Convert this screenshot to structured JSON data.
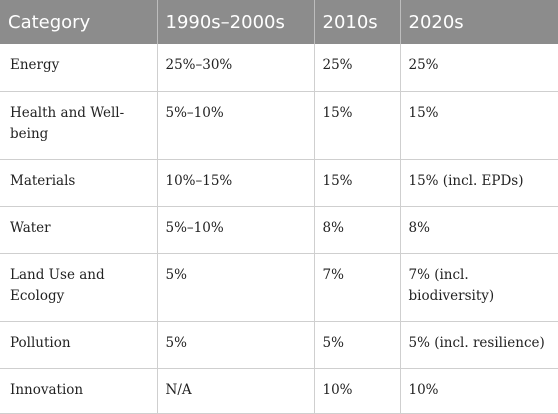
{
  "table": {
    "headers": [
      "Category",
      "1990s–2000s",
      "2010s",
      "2020s"
    ],
    "rows": [
      [
        "Energy",
        "25%–30%",
        "25%",
        "25%"
      ],
      [
        "Health and Well-being",
        "5%–10%",
        "15%",
        "15%"
      ],
      [
        "Materials",
        "10%–15%",
        "15%",
        "15% (incl. EPDs)"
      ],
      [
        "Water",
        "5%–10%",
        "8%",
        "8%"
      ],
      [
        "Land Use and Ecology",
        "5%",
        "7%",
        "7% (incl. biodiversity)"
      ],
      [
        "Pollution",
        "5%",
        "5%",
        "5% (incl. resilience)"
      ],
      [
        "Innovation",
        "N/A",
        "10%",
        "10%"
      ]
    ]
  },
  "colors": {
    "header_bg": "#8c8c8c",
    "header_text": "#ffffff",
    "grid": "#cfcfcf"
  }
}
